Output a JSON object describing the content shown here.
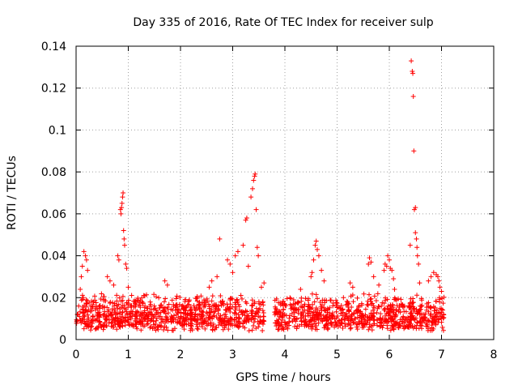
{
  "chart_data": {
    "type": "scatter",
    "title": "Day 335 of 2016, Rate Of TEC Index for receiver sulp",
    "xlabel": "GPS time / hours",
    "ylabel": "ROTI / TECUs",
    "xlim": [
      0,
      8
    ],
    "ylim": [
      0,
      0.14
    ],
    "x_ticks": [
      "0",
      "1",
      "2",
      "3",
      "4",
      "5",
      "6",
      "7",
      "8"
    ],
    "y_ticks": [
      "0",
      "0.02",
      "0.04",
      "0.06",
      "0.08",
      "0.1",
      "0.12",
      "0.14"
    ],
    "grid": true,
    "marker": "+",
    "series_color": "#ff0000",
    "background_segments": [
      {
        "x_start": 0.0,
        "x_end": 3.6,
        "y_min": 0.004,
        "y_max": 0.022
      },
      {
        "x_start": 3.8,
        "x_end": 7.05,
        "y_min": 0.004,
        "y_max": 0.022
      }
    ],
    "notable_points": [
      {
        "x": 0.05,
        "y": 0.016
      },
      {
        "x": 0.08,
        "y": 0.024
      },
      {
        "x": 0.1,
        "y": 0.03
      },
      {
        "x": 0.12,
        "y": 0.035
      },
      {
        "x": 0.15,
        "y": 0.042
      },
      {
        "x": 0.18,
        "y": 0.04
      },
      {
        "x": 0.2,
        "y": 0.038
      },
      {
        "x": 0.22,
        "y": 0.033
      },
      {
        "x": 0.6,
        "y": 0.03
      },
      {
        "x": 0.65,
        "y": 0.028
      },
      {
        "x": 0.72,
        "y": 0.026
      },
      {
        "x": 0.8,
        "y": 0.04
      },
      {
        "x": 0.82,
        "y": 0.038
      },
      {
        "x": 0.85,
        "y": 0.062
      },
      {
        "x": 0.86,
        "y": 0.06
      },
      {
        "x": 0.87,
        "y": 0.063
      },
      {
        "x": 0.88,
        "y": 0.065
      },
      {
        "x": 0.89,
        "y": 0.068
      },
      {
        "x": 0.9,
        "y": 0.07
      },
      {
        "x": 0.91,
        "y": 0.052
      },
      {
        "x": 0.92,
        "y": 0.048
      },
      {
        "x": 0.93,
        "y": 0.045
      },
      {
        "x": 0.95,
        "y": 0.036
      },
      {
        "x": 0.97,
        "y": 0.034
      },
      {
        "x": 1.0,
        "y": 0.025
      },
      {
        "x": 1.7,
        "y": 0.028
      },
      {
        "x": 1.75,
        "y": 0.026
      },
      {
        "x": 2.55,
        "y": 0.025
      },
      {
        "x": 2.6,
        "y": 0.028
      },
      {
        "x": 2.7,
        "y": 0.03
      },
      {
        "x": 2.75,
        "y": 0.048
      },
      {
        "x": 2.9,
        "y": 0.038
      },
      {
        "x": 2.95,
        "y": 0.036
      },
      {
        "x": 3.0,
        "y": 0.032
      },
      {
        "x": 3.05,
        "y": 0.04
      },
      {
        "x": 3.1,
        "y": 0.042
      },
      {
        "x": 3.2,
        "y": 0.045
      },
      {
        "x": 3.25,
        "y": 0.057
      },
      {
        "x": 3.27,
        "y": 0.058
      },
      {
        "x": 3.3,
        "y": 0.035
      },
      {
        "x": 3.35,
        "y": 0.068
      },
      {
        "x": 3.38,
        "y": 0.072
      },
      {
        "x": 3.4,
        "y": 0.076
      },
      {
        "x": 3.42,
        "y": 0.078
      },
      {
        "x": 3.43,
        "y": 0.079
      },
      {
        "x": 3.45,
        "y": 0.062
      },
      {
        "x": 3.47,
        "y": 0.044
      },
      {
        "x": 3.49,
        "y": 0.04
      },
      {
        "x": 3.55,
        "y": 0.025
      },
      {
        "x": 3.6,
        "y": 0.027
      },
      {
        "x": 4.3,
        "y": 0.024
      },
      {
        "x": 4.5,
        "y": 0.03
      },
      {
        "x": 4.52,
        "y": 0.032
      },
      {
        "x": 4.55,
        "y": 0.038
      },
      {
        "x": 4.58,
        "y": 0.045
      },
      {
        "x": 4.6,
        "y": 0.047
      },
      {
        "x": 4.62,
        "y": 0.043
      },
      {
        "x": 4.65,
        "y": 0.04
      },
      {
        "x": 4.7,
        "y": 0.033
      },
      {
        "x": 4.75,
        "y": 0.028
      },
      {
        "x": 5.25,
        "y": 0.027
      },
      {
        "x": 5.3,
        "y": 0.025
      },
      {
        "x": 5.6,
        "y": 0.036
      },
      {
        "x": 5.62,
        "y": 0.039
      },
      {
        "x": 5.65,
        "y": 0.037
      },
      {
        "x": 5.7,
        "y": 0.03
      },
      {
        "x": 5.8,
        "y": 0.026
      },
      {
        "x": 5.9,
        "y": 0.033
      },
      {
        "x": 5.92,
        "y": 0.036
      },
      {
        "x": 5.95,
        "y": 0.035
      },
      {
        "x": 5.97,
        "y": 0.04
      },
      {
        "x": 6.0,
        "y": 0.038
      },
      {
        "x": 6.02,
        "y": 0.034
      },
      {
        "x": 6.05,
        "y": 0.033
      },
      {
        "x": 6.08,
        "y": 0.029
      },
      {
        "x": 6.1,
        "y": 0.024
      },
      {
        "x": 6.4,
        "y": 0.045
      },
      {
        "x": 6.42,
        "y": 0.133
      },
      {
        "x": 6.44,
        "y": 0.128
      },
      {
        "x": 6.45,
        "y": 0.127
      },
      {
        "x": 6.46,
        "y": 0.116
      },
      {
        "x": 6.47,
        "y": 0.09
      },
      {
        "x": 6.48,
        "y": 0.062
      },
      {
        "x": 6.5,
        "y": 0.063
      },
      {
        "x": 6.5,
        "y": 0.051
      },
      {
        "x": 6.52,
        "y": 0.048
      },
      {
        "x": 6.53,
        "y": 0.044
      },
      {
        "x": 6.54,
        "y": 0.04
      },
      {
        "x": 6.56,
        "y": 0.036
      },
      {
        "x": 6.58,
        "y": 0.027
      },
      {
        "x": 6.75,
        "y": 0.028
      },
      {
        "x": 6.8,
        "y": 0.03
      },
      {
        "x": 6.85,
        "y": 0.032
      },
      {
        "x": 6.9,
        "y": 0.031
      },
      {
        "x": 6.93,
        "y": 0.03
      },
      {
        "x": 6.95,
        "y": 0.028
      },
      {
        "x": 6.97,
        "y": 0.025
      },
      {
        "x": 7.0,
        "y": 0.023
      }
    ]
  }
}
